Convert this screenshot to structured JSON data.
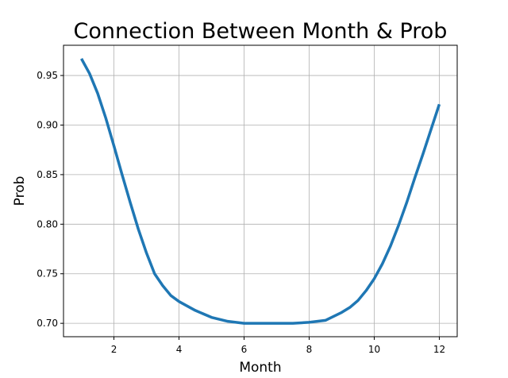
{
  "chart_data": {
    "type": "line",
    "title": "Connection Between Month & Prob",
    "xlabel": "Month",
    "ylabel": "Prob",
    "xlim": [
      0.45,
      12.55
    ],
    "ylim": [
      0.6865,
      0.9805
    ],
    "xticks": [
      2,
      4,
      6,
      8,
      10,
      12
    ],
    "yticks": [
      0.7,
      0.75,
      0.8,
      0.85,
      0.9,
      0.95
    ],
    "xtick_labels": [
      "2",
      "4",
      "6",
      "8",
      "10",
      "12"
    ],
    "ytick_labels": [
      "0.70",
      "0.75",
      "0.80",
      "0.85",
      "0.90",
      "0.95"
    ],
    "grid": true,
    "series": [
      {
        "color": "#1f77b4",
        "x": [
          1,
          1.25,
          1.5,
          1.75,
          2,
          2.25,
          2.5,
          2.75,
          3,
          3.25,
          3.5,
          3.75,
          4,
          4.5,
          5,
          5.5,
          6,
          6.5,
          7,
          7.5,
          8,
          8.5,
          9,
          9.25,
          9.5,
          9.75,
          10,
          10.25,
          10.5,
          10.75,
          11,
          11.25,
          11.5,
          11.75,
          12
        ],
        "y": [
          0.967,
          0.952,
          0.932,
          0.907,
          0.879,
          0.85,
          0.822,
          0.795,
          0.771,
          0.75,
          0.738,
          0.728,
          0.722,
          0.713,
          0.706,
          0.702,
          0.7,
          0.7,
          0.7,
          0.7,
          0.701,
          0.703,
          0.711,
          0.716,
          0.723,
          0.733,
          0.745,
          0.76,
          0.778,
          0.799,
          0.822,
          0.847,
          0.871,
          0.896,
          0.921
        ]
      }
    ]
  }
}
